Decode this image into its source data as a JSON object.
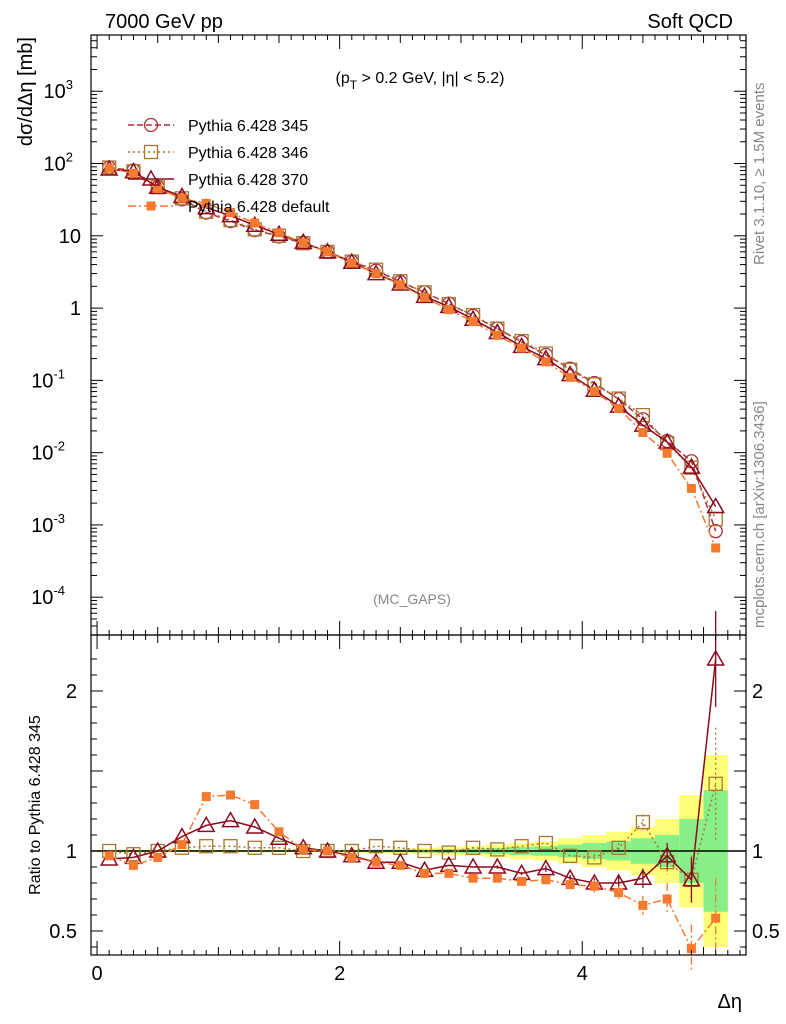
{
  "header": {
    "left": "7000 GeV pp",
    "right": "Soft QCD"
  },
  "cut_label": "(p_T > 0.2 GeV, |η| < 5.2)",
  "analysis_label": "(MC_GAPS)",
  "side_top": "Rivet 3.1.10, ≥ 1.5M events",
  "side_bottom": "mcplots.cern.ch [arXiv:1306.3436]",
  "chart_data": [
    {
      "type": "line",
      "panel": "main",
      "ylabel": "dσ/dΔη [mb]",
      "xlabel": "Δη",
      "ylog": true,
      "xlim": [
        -0.05,
        5.35
      ],
      "ylim": [
        3e-05,
        6000
      ],
      "x": [
        0.1,
        0.3,
        0.5,
        0.7,
        0.9,
        1.1,
        1.3,
        1.5,
        1.7,
        1.9,
        2.1,
        2.3,
        2.5,
        2.7,
        2.9,
        3.1,
        3.3,
        3.5,
        3.7,
        3.9,
        4.1,
        4.3,
        4.5,
        4.7,
        4.9,
        5.1
      ],
      "series": [
        {
          "name": "Pythia 6.428 345",
          "color": "#b22b3a",
          "dash": "6,3",
          "marker": "circle-open",
          "values": [
            88,
            80,
            47,
            32,
            21,
            16,
            12,
            9.8,
            7.9,
            6.0,
            4.4,
            3.3,
            2.3,
            1.65,
            1.15,
            0.78,
            0.52,
            0.34,
            0.225,
            0.145,
            0.092,
            0.055,
            0.029,
            0.0145,
            0.0076,
            0.00082
          ]
        },
        {
          "name": "Pythia 6.428 346",
          "color": "#a6782f",
          "dash": "2,3",
          "marker": "square-open",
          "values": [
            88,
            78,
            47,
            33,
            21.5,
            16.5,
            12.3,
            10,
            7.9,
            6.0,
            4.4,
            3.4,
            2.35,
            1.65,
            1.13,
            0.8,
            0.52,
            0.35,
            0.235,
            0.14,
            0.088,
            0.056,
            0.033,
            0.0135,
            0.0062,
            0.0012
          ]
        },
        {
          "name": "Pythia 6.428 370",
          "color": "#8b0a1e",
          "dash": "",
          "marker": "triangle-open",
          "values": [
            84,
            77,
            47,
            35,
            24.5,
            19,
            14,
            10.5,
            8.1,
            6.0,
            4.3,
            3.0,
            2.15,
            1.45,
            1.05,
            0.7,
            0.46,
            0.295,
            0.2,
            0.12,
            0.073,
            0.044,
            0.024,
            0.014,
            0.0063,
            0.0018
          ]
        },
        {
          "name": "Pythia 6.428 default",
          "color": "#f47a30",
          "dash": "8,3,2,3",
          "marker": "square-filled",
          "values": [
            86,
            73,
            45,
            33,
            28,
            21,
            15,
            11,
            8,
            6.0,
            4.2,
            3.0,
            2.1,
            1.4,
            0.95,
            0.65,
            0.42,
            0.28,
            0.18,
            0.11,
            0.07,
            0.041,
            0.019,
            0.0098,
            0.0032,
            0.00048
          ]
        }
      ]
    },
    {
      "type": "line",
      "panel": "ratio",
      "ylabel": "Ratio to Pythia 6.428 345",
      "xlabel": "Δη",
      "xlim": [
        -0.05,
        5.35
      ],
      "ylim": [
        0.35,
        2.35
      ],
      "yticks": [
        0.5,
        1,
        2
      ],
      "xticks": [
        0,
        2,
        4
      ],
      "x": [
        0.1,
        0.3,
        0.5,
        0.7,
        0.9,
        1.1,
        1.3,
        1.5,
        1.7,
        1.9,
        2.1,
        2.3,
        2.5,
        2.7,
        2.9,
        3.1,
        3.3,
        3.5,
        3.7,
        3.9,
        4.1,
        4.3,
        4.5,
        4.7,
        4.9,
        5.1
      ],
      "band_inner": [
        0.005,
        0.005,
        0.005,
        0.005,
        0.005,
        0.005,
        0.005,
        0.005,
        0.005,
        0.005,
        0.006,
        0.007,
        0.008,
        0.01,
        0.012,
        0.015,
        0.02,
        0.025,
        0.03,
        0.04,
        0.05,
        0.06,
        0.08,
        0.1,
        0.2,
        0.38
      ],
      "band_outer": [
        0.008,
        0.008,
        0.008,
        0.008,
        0.008,
        0.008,
        0.008,
        0.008,
        0.008,
        0.008,
        0.01,
        0.012,
        0.015,
        0.02,
        0.025,
        0.03,
        0.04,
        0.05,
        0.06,
        0.08,
        0.1,
        0.12,
        0.15,
        0.2,
        0.35,
        0.6
      ],
      "series": [
        {
          "name": "Pythia 6.428 346",
          "color": "#a6782f",
          "dash": "2,3",
          "marker": "square-open",
          "values": [
            1.0,
            0.98,
            1.0,
            1.02,
            1.03,
            1.03,
            1.02,
            1.02,
            1.0,
            1.0,
            1.0,
            1.03,
            1.02,
            1.0,
            0.99,
            1.02,
            1.01,
            1.03,
            1.05,
            0.97,
            0.96,
            1.02,
            1.18,
            0.93,
            0.82,
            1.42
          ],
          "errors": [
            0,
            0,
            0,
            0,
            0,
            0,
            0,
            0,
            0,
            0,
            0,
            0,
            0,
            0,
            0,
            0,
            0,
            0,
            0,
            0,
            0.02,
            0.03,
            0.05,
            0.08,
            0.15,
            0.35
          ]
        },
        {
          "name": "Pythia 6.428 370",
          "color": "#8b0a1e",
          "dash": "",
          "marker": "triangle-open",
          "values": [
            0.95,
            0.96,
            1.0,
            1.09,
            1.16,
            1.19,
            1.15,
            1.08,
            1.02,
            1.0,
            0.97,
            0.93,
            0.93,
            0.88,
            0.91,
            0.9,
            0.9,
            0.86,
            0.89,
            0.83,
            0.8,
            0.8,
            0.83,
            0.97,
            0.82,
            2.2
          ],
          "errors": [
            0,
            0,
            0,
            0,
            0,
            0,
            0,
            0,
            0,
            0,
            0,
            0,
            0,
            0,
            0,
            0,
            0.01,
            0.01,
            0.02,
            0.02,
            0.03,
            0.04,
            0.06,
            0.08,
            0.14,
            0.3
          ]
        },
        {
          "name": "Pythia 6.428 default",
          "color": "#f47a30",
          "dash": "8,3,2,3",
          "marker": "square-filled",
          "values": [
            0.97,
            0.91,
            0.96,
            1.04,
            1.34,
            1.35,
            1.29,
            1.12,
            1.01,
            1.0,
            0.96,
            0.93,
            0.91,
            0.86,
            0.86,
            0.83,
            0.83,
            0.81,
            0.82,
            0.79,
            0.78,
            0.74,
            0.66,
            0.7,
            0.39,
            0.58
          ],
          "errors": [
            0,
            0,
            0,
            0,
            0,
            0,
            0,
            0,
            0,
            0,
            0,
            0,
            0,
            0.01,
            0.01,
            0.01,
            0.02,
            0.02,
            0.02,
            0.03,
            0.04,
            0.04,
            0.06,
            0.1,
            0.15,
            0.25
          ]
        }
      ]
    }
  ]
}
